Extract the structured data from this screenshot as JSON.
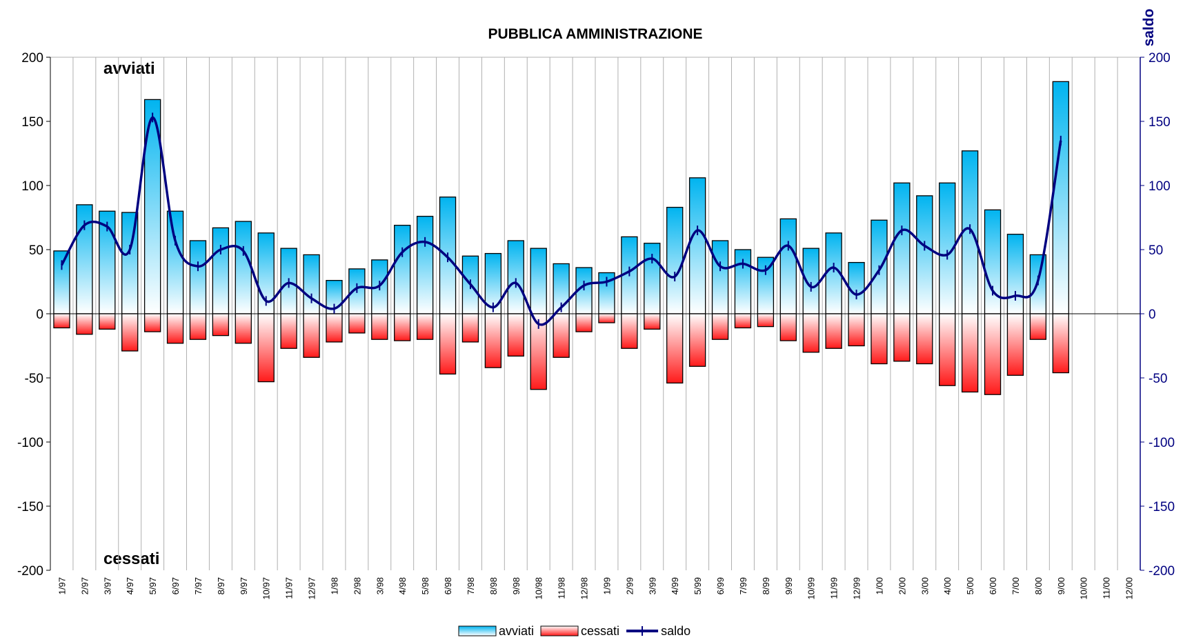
{
  "chart_data": {
    "type": "bar",
    "title": "PUBBLICA AMMINISTRAZIONE",
    "y2_label": "saldo",
    "annotations": [
      "avviati",
      "cessati"
    ],
    "categories": [
      "1/97",
      "2/97",
      "3/97",
      "4/97",
      "5/97",
      "6/97",
      "7/97",
      "8/97",
      "9/97",
      "10/97",
      "11/97",
      "12/97",
      "1/98",
      "2/98",
      "3/98",
      "4/98",
      "5/98",
      "6/98",
      "7/98",
      "8/98",
      "9/98",
      "10/98",
      "11/98",
      "12/98",
      "1/99",
      "2/99",
      "3/99",
      "4/99",
      "5/99",
      "6/99",
      "7/99",
      "8/99",
      "9/99",
      "10/99",
      "11/99",
      "12/99",
      "1/00",
      "2/00",
      "3/00",
      "4/00",
      "5/00",
      "6/00",
      "7/00",
      "8/00",
      "9/00",
      "10/00",
      "11/00",
      "12/00"
    ],
    "series": [
      {
        "name": "avviati",
        "color": "#00b4f0",
        "values": [
          49,
          85,
          80,
          79,
          167,
          80,
          57,
          67,
          72,
          63,
          51,
          46,
          26,
          35,
          42,
          69,
          76,
          91,
          45,
          47,
          57,
          51,
          39,
          36,
          32,
          60,
          55,
          83,
          106,
          57,
          50,
          44,
          74,
          51,
          63,
          40,
          73,
          102,
          92,
          102,
          127,
          81,
          62,
          46,
          181,
          null,
          null,
          null
        ]
      },
      {
        "name": "cessati",
        "color": "#ff1a1a",
        "values": [
          -11,
          -16,
          -12,
          -29,
          -14,
          -23,
          -20,
          -17,
          -23,
          -53,
          -27,
          -34,
          -22,
          -15,
          -20,
          -21,
          -20,
          -47,
          -22,
          -42,
          -33,
          -59,
          -34,
          -14,
          -7,
          -27,
          -12,
          -54,
          -41,
          -20,
          -11,
          -10,
          -21,
          -30,
          -27,
          -25,
          -39,
          -37,
          -39,
          -56,
          -61,
          -63,
          -48,
          -20,
          -46,
          null,
          null,
          null
        ]
      },
      {
        "name": "saldo",
        "type": "line",
        "axis": "y2",
        "color": "#000080",
        "values": [
          38,
          69,
          68,
          50,
          153,
          57,
          37,
          50,
          49,
          10,
          24,
          12,
          4,
          20,
          22,
          48,
          56,
          44,
          23,
          5,
          24,
          -8,
          5,
          22,
          25,
          33,
          43,
          29,
          65,
          37,
          39,
          34,
          53,
          21,
          36,
          15,
          34,
          65,
          53,
          46,
          66,
          18,
          14,
          26,
          135,
          null,
          null,
          null
        ]
      }
    ],
    "ylim": [
      -200,
      200
    ],
    "yticks": [
      -200,
      -150,
      -100,
      -50,
      0,
      50,
      100,
      150,
      200
    ],
    "y2lim": [
      -200,
      200
    ],
    "y2ticks": [
      -200,
      -150,
      -100,
      -50,
      0,
      50,
      100,
      150,
      200
    ],
    "grid": true,
    "legend": "bottom"
  }
}
